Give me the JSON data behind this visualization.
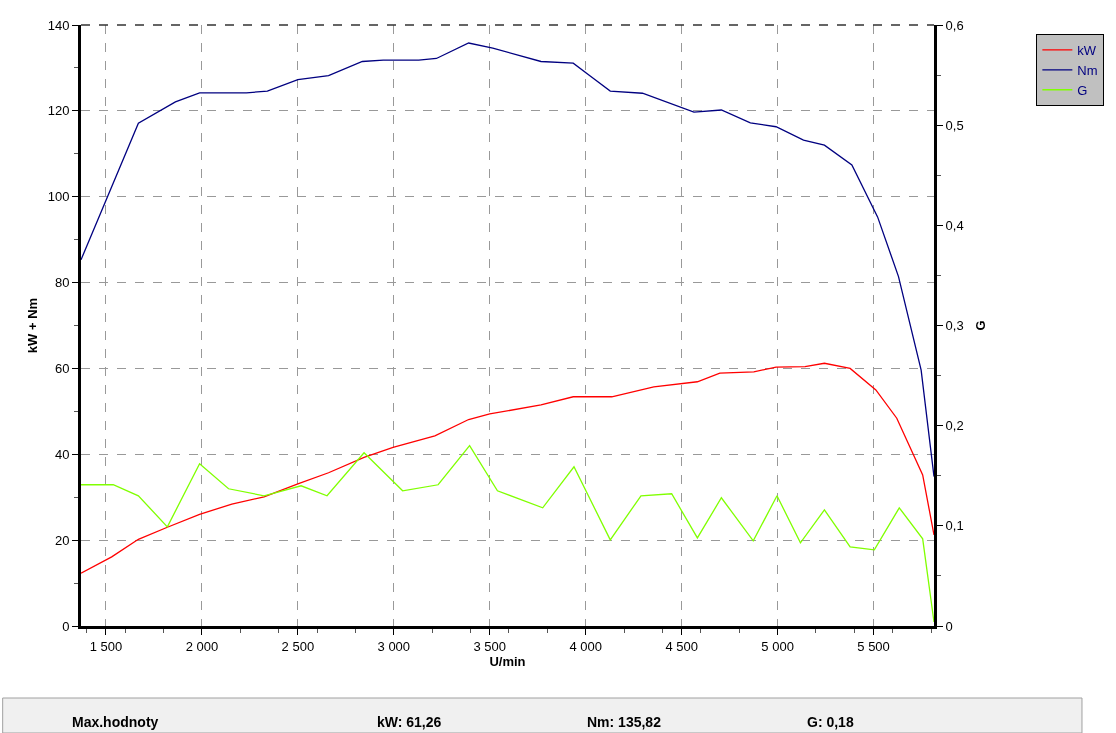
{
  "chart_data": {
    "type": "line",
    "xlabel": "U/min",
    "ylabel": "kW + Nm",
    "y2label": "G",
    "xlim": [
      1370,
      5815
    ],
    "xticks": [
      {
        "value": 1500,
        "label": "1 500"
      },
      {
        "value": 2000,
        "label": "2 000"
      },
      {
        "value": 2500,
        "label": "2 500"
      },
      {
        "value": 3000,
        "label": "3 000"
      },
      {
        "value": 3500,
        "label": "3 500"
      },
      {
        "value": 4000,
        "label": "4 000"
      },
      {
        "value": 4500,
        "label": "4 500"
      },
      {
        "value": 5000,
        "label": "5 000"
      },
      {
        "value": 5500,
        "label": "5 500"
      }
    ],
    "ylim": [
      0,
      140
    ],
    "yticks": [
      0,
      20,
      40,
      60,
      80,
      100,
      120,
      140
    ],
    "y2lim": [
      0,
      0.6
    ],
    "y2ticks": [
      0,
      {
        "value": 0.1,
        "label": "0,1"
      },
      {
        "value": 0.2,
        "label": "0,2"
      },
      {
        "value": 0.3,
        "label": "0,3"
      },
      {
        "value": 0.4,
        "label": "0,4"
      },
      {
        "value": 0.5,
        "label": "0,5"
      },
      {
        "value": 0.6,
        "label": "0,6"
      }
    ],
    "grid": true,
    "legend": "top right",
    "marker": "none",
    "line_style": "solid",
    "series": [
      {
        "name": "kW",
        "color": "#ff0000",
        "x": [
          1370,
          1530,
          1669,
          1820,
          1988,
          2156,
          2324,
          2500,
          2660,
          2845,
          2996,
          3214,
          3390,
          3500,
          3767,
          3935,
          4136,
          4355,
          4582,
          4699,
          4876,
          4992,
          5143,
          5244,
          5378,
          5512,
          5621,
          5756,
          5815
        ],
        "values": [
          12.3,
          16.1,
          20.2,
          23.0,
          26.0,
          28.4,
          30.1,
          33.1,
          35.7,
          39.3,
          41.6,
          44.3,
          48.1,
          49.4,
          51.5,
          53.4,
          53.4,
          55.7,
          56.9,
          58.9,
          59.2,
          60.3,
          60.4,
          61.2,
          60.0,
          55.0,
          48.4,
          35.2,
          21.2
        ]
      },
      {
        "name": "Nm",
        "color": "#000080",
        "x": [
          1370,
          1669,
          1862,
          1988,
          2232,
          2341,
          2500,
          2660,
          2836,
          2945,
          3130,
          3222,
          3390,
          3516,
          3767,
          3935,
          4027,
          4128,
          4296,
          4564,
          4707,
          4858,
          4992,
          5135,
          5244,
          5387,
          5521,
          5630,
          5748,
          5815
        ],
        "values": [
          85.3,
          117.1,
          122.1,
          124.2,
          124.2,
          124.6,
          127.3,
          128.2,
          131.5,
          131.8,
          131.8,
          132.2,
          135.8,
          134.6,
          131.5,
          131.1,
          128.0,
          124.6,
          124.1,
          119.7,
          120.2,
          117.2,
          116.3,
          113.2,
          112.0,
          107.4,
          95.3,
          81.4,
          59.6,
          34.8
        ]
      },
      {
        "name": "G",
        "color": "#80ff00",
        "axis": "y2",
        "x": [
          1370,
          1538,
          1669,
          1820,
          1988,
          2139,
          2324,
          2517,
          2652,
          2845,
          3046,
          3231,
          3395,
          3540,
          3776,
          3939,
          4128,
          4288,
          4448,
          4582,
          4707,
          4873,
          4997,
          5119,
          5244,
          5378,
          5504,
          5634,
          5756,
          5815
        ],
        "values": [
          0.141,
          0.141,
          0.13,
          0.099,
          0.162,
          0.137,
          0.13,
          0.14,
          0.13,
          0.173,
          0.135,
          0.141,
          0.18,
          0.135,
          0.118,
          0.159,
          0.086,
          0.13,
          0.132,
          0.088,
          0.128,
          0.085,
          0.13,
          0.083,
          0.116,
          0.079,
          0.076,
          0.118,
          0.087,
          0.004
        ]
      }
    ],
    "annotations": [
      "Max.hodnoty",
      "kW: 61,26",
      "Nm: 135,82",
      "G: 0,18"
    ]
  }
}
